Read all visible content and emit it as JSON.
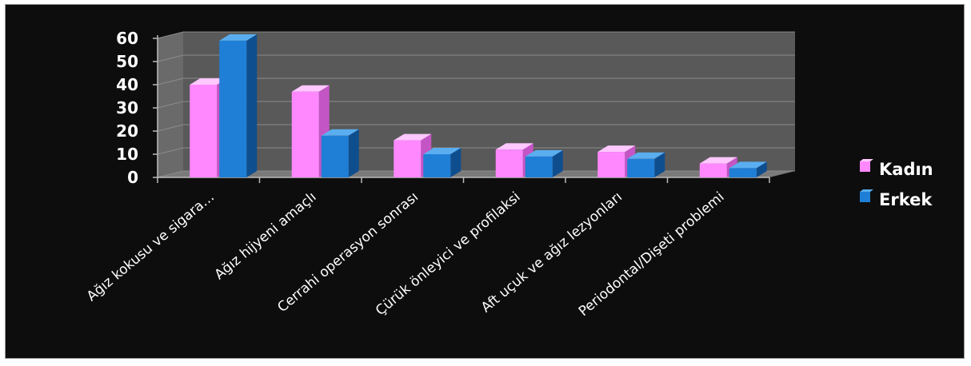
{
  "chart_data": {
    "type": "bar",
    "categories": [
      "Ağız kokusu ve sigara…",
      "Ağız hijyeni amaçlı",
      "Cerrahi operasyon sonrası",
      "Çürük önleyici ve profilaksi",
      "Aft uçuk ve ağız lezyonları",
      "Periodontal/Dişeti problemi"
    ],
    "series": [
      {
        "name": "Kadın",
        "values": [
          40,
          37,
          16,
          12,
          11,
          6
        ],
        "color": "#ff88ff",
        "side": "#c455c4",
        "top": "#ffc8ff"
      },
      {
        "name": "Erkek",
        "values": [
          59,
          18,
          10,
          9,
          8,
          4
        ],
        "color": "#1f7fd6",
        "side": "#0f4e8e",
        "top": "#5aaef0"
      }
    ],
    "ylim": [
      0,
      60
    ],
    "yticks": [
      0,
      10,
      20,
      30,
      40,
      50,
      60
    ],
    "grid": true,
    "legend": "right",
    "background": "#0d0d0d",
    "wall_color": "#595959",
    "gridline_color": "#8c8c8c"
  }
}
